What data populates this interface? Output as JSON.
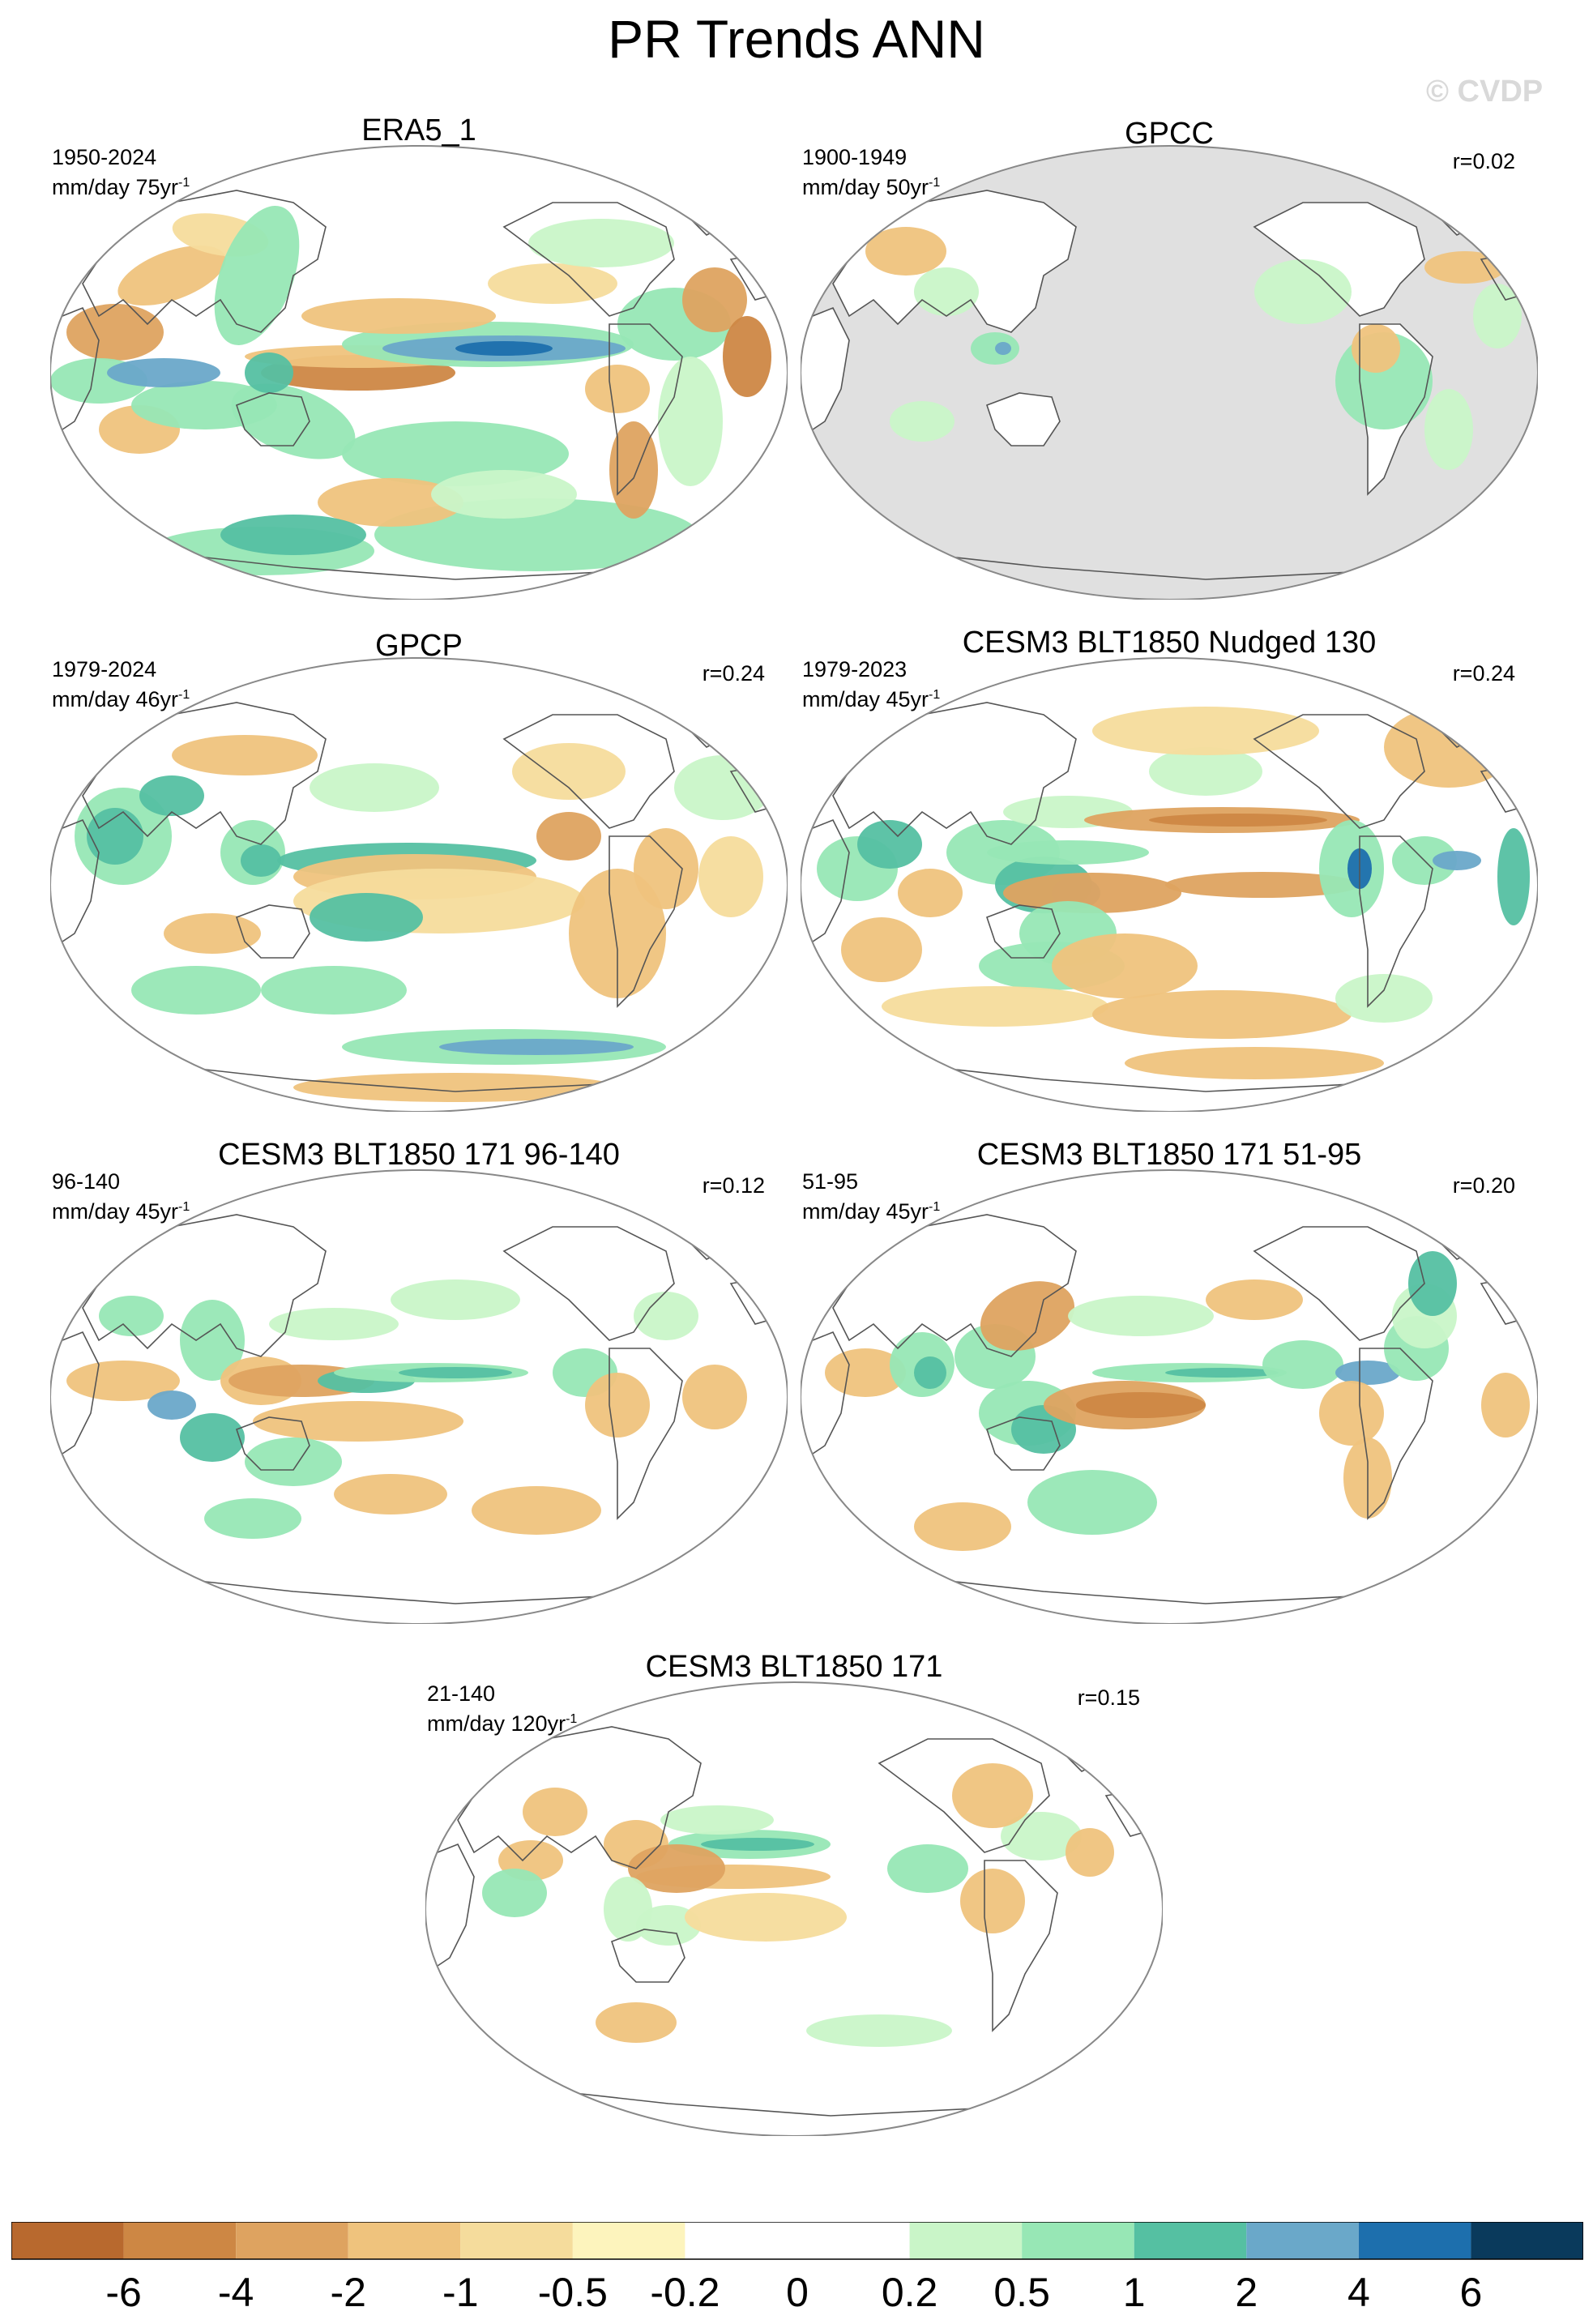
{
  "title": "PR Trends ANN",
  "watermark": "© CVDP",
  "panels": [
    {
      "title": "ERA5_1",
      "years": "1950-2024",
      "units": "mm/day 75yr",
      "units_sup": "-1",
      "r": "",
      "land_masked": false,
      "pattern": "era5"
    },
    {
      "title": "GPCC",
      "years": "1900-1949",
      "units": "mm/day 50yr",
      "units_sup": "-1",
      "r": "r=0.02",
      "land_masked": true,
      "pattern": "gpcc"
    },
    {
      "title": "GPCP",
      "years": "1979-2024",
      "units": "mm/day 46yr",
      "units_sup": "-1",
      "r": "r=0.24",
      "land_masked": false,
      "pattern": "gpcp"
    },
    {
      "title": "CESM3 BLT1850 Nudged 130",
      "years": "1979-2023",
      "units": "mm/day 45yr",
      "units_sup": "-1",
      "r": "r=0.24",
      "land_masked": false,
      "pattern": "nudged"
    },
    {
      "title": "CESM3 BLT1850 171 96-140",
      "years": "96-140",
      "units": "mm/day 45yr",
      "units_sup": "-1",
      "r": "r=0.12",
      "land_masked": false,
      "pattern": "m96"
    },
    {
      "title": "CESM3 BLT1850 171 51-95",
      "years": "51-95",
      "units": "mm/day 45yr",
      "units_sup": "-1",
      "r": "r=0.20",
      "land_masked": false,
      "pattern": "m51"
    },
    {
      "title": "CESM3 BLT1850 171",
      "years": "21-140",
      "units": "mm/day 120yr",
      "units_sup": "-1",
      "r": "r=0.15",
      "land_masked": false,
      "pattern": "m21"
    }
  ],
  "colorbar": {
    "colors": [
      "#b8692e",
      "#cd8744",
      "#dea360",
      "#efc37d",
      "#f5dc9c",
      "#fdf4bd",
      "#ffffff",
      "#ffffff",
      "#c9f5c8",
      "#97e7b5",
      "#55c0a2",
      "#6aa8c9",
      "#1d6fad",
      "#0a3a5c"
    ],
    "tick_labels": [
      "-6",
      "-4",
      "-2",
      "-1",
      "-0.5",
      "-0.2",
      "0",
      "0.2",
      "0.5",
      "1",
      "2",
      "4",
      "6"
    ]
  }
}
